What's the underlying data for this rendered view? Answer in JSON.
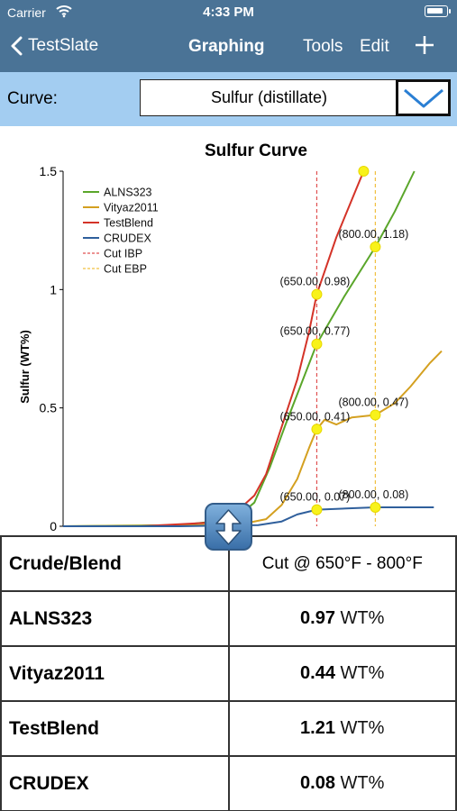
{
  "status_bar": {
    "carrier": "Carrier",
    "time": "4:33 PM"
  },
  "nav": {
    "back_label": "TestSlate",
    "title": "Graphing",
    "tools_label": "Tools",
    "edit_label": "Edit"
  },
  "curve_selector": {
    "label": "Curve:",
    "value": "Sulfur (distillate)"
  },
  "chart_data": {
    "type": "line",
    "title": "Sulfur Curve",
    "ylabel": "Sulfur (WT%)",
    "ylim": [
      0,
      1.5
    ],
    "yticks": [
      "0",
      "0.5",
      "1",
      "1.5"
    ],
    "legend_position": "top-left",
    "grid": false,
    "cut_ibp": 650,
    "cut_ebp": 800,
    "series": [
      {
        "name": "ALNS323",
        "color": "#5aa62a",
        "points": [
          [
            0,
            0
          ],
          [
            300,
            0.005
          ],
          [
            440,
            0.03
          ],
          [
            490,
            0.1
          ],
          [
            530,
            0.25
          ],
          [
            570,
            0.43
          ],
          [
            610,
            0.6
          ],
          [
            650,
            0.77
          ],
          [
            720,
            0.97
          ],
          [
            800,
            1.18
          ],
          [
            850,
            1.33
          ],
          [
            900,
            1.5
          ]
        ]
      },
      {
        "name": "Vityaz2011",
        "color": "#d4a020",
        "points": [
          [
            0,
            0
          ],
          [
            300,
            0.003
          ],
          [
            460,
            0.01
          ],
          [
            520,
            0.03
          ],
          [
            560,
            0.09
          ],
          [
            600,
            0.2
          ],
          [
            630,
            0.33
          ],
          [
            650,
            0.41
          ],
          [
            670,
            0.45
          ],
          [
            700,
            0.43
          ],
          [
            740,
            0.46
          ],
          [
            800,
            0.47
          ],
          [
            850,
            0.52
          ],
          [
            890,
            0.59
          ],
          [
            940,
            0.69
          ],
          [
            970,
            0.74
          ]
        ]
      },
      {
        "name": "TestBlend",
        "color": "#d43328",
        "points": [
          [
            0,
            0
          ],
          [
            200,
            0
          ],
          [
            370,
            0.015
          ],
          [
            430,
            0.04
          ],
          [
            490,
            0.13
          ],
          [
            520,
            0.22
          ],
          [
            560,
            0.42
          ],
          [
            600,
            0.62
          ],
          [
            630,
            0.82
          ],
          [
            650,
            0.98
          ],
          [
            700,
            1.22
          ],
          [
            750,
            1.42
          ],
          [
            770,
            1.5
          ]
        ]
      },
      {
        "name": "CRUDEX",
        "color": "#2f5f9c",
        "points": [
          [
            0,
            0
          ],
          [
            300,
            0
          ],
          [
            500,
            0.005
          ],
          [
            560,
            0.02
          ],
          [
            600,
            0.05
          ],
          [
            650,
            0.07
          ],
          [
            800,
            0.08
          ],
          [
            950,
            0.08
          ]
        ]
      }
    ],
    "cut_lines": [
      {
        "name": "Cut IBP",
        "color": "#e05050",
        "x": 650
      },
      {
        "name": "Cut EBP",
        "color": "#f0c040",
        "x": 800
      }
    ],
    "markers": [
      {
        "x": 650,
        "y": 0.98,
        "label": "(650.00, 0.98)"
      },
      {
        "x": 650,
        "y": 0.77,
        "label": "(650.00, 0.77)"
      },
      {
        "x": 650,
        "y": 0.41,
        "label": "(650.00, 0.41)"
      },
      {
        "x": 650,
        "y": 0.07,
        "label": "(650.00, 0.07)"
      },
      {
        "x": 800,
        "y": 1.18,
        "label": "(800.00, 1.18)"
      },
      {
        "x": 800,
        "y": 0.47,
        "label": "(800.00, 0.47)"
      },
      {
        "x": 800,
        "y": 0.08,
        "label": "(800.00, 0.08)"
      },
      {
        "x": 770,
        "y": 1.5,
        "label": ""
      }
    ]
  },
  "table": {
    "header_name": "Crude/Blend",
    "header_cut": "Cut @ 650°F - 800°F",
    "rows": [
      {
        "name": "ALNS323",
        "value": "0.97",
        "unit": "WT%"
      },
      {
        "name": "Vityaz2011",
        "value": "0.44",
        "unit": "WT%"
      },
      {
        "name": "TestBlend",
        "value": "1.21",
        "unit": "WT%"
      },
      {
        "name": "CRUDEX",
        "value": "0.08",
        "unit": "WT%"
      }
    ]
  }
}
